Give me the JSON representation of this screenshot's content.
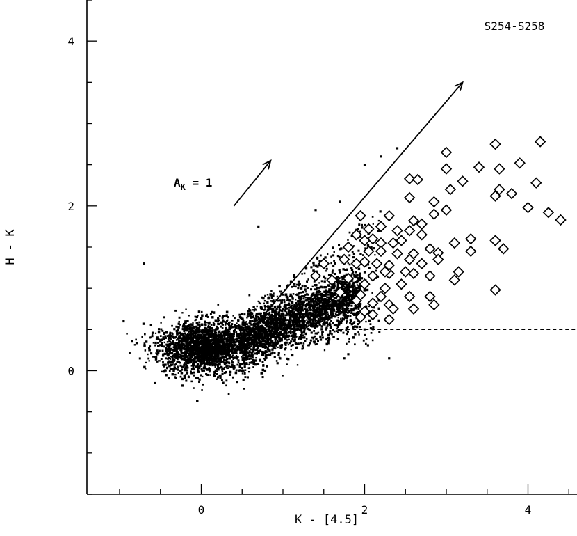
{
  "chart_data": {
    "type": "scatter",
    "title": "",
    "panel_label": "S254-S258",
    "xlabel": "K - [4.5]",
    "ylabel": "H - K",
    "xlim": [
      -1.4,
      4.6
    ],
    "ylim": [
      -1.5,
      4.5
    ],
    "x_ticks": [
      {
        "value": 0,
        "label": "0"
      },
      {
        "value": 2,
        "label": "2"
      },
      {
        "value": 4,
        "label": "4"
      }
    ],
    "y_ticks": [
      {
        "value": 0,
        "label": "0"
      },
      {
        "value": 2,
        "label": "2"
      },
      {
        "value": 4,
        "label": "4"
      }
    ],
    "grid": false,
    "reddening_vector": {
      "label_main": "A",
      "label_sub": "K",
      "label_rest": " = 1",
      "x": [
        0.4,
        0.85
      ],
      "y": [
        2.0,
        2.55
      ]
    },
    "boundary_line": {
      "x": [
        0.4,
        3.2
      ],
      "y": [
        0.25,
        3.5
      ]
    },
    "threshold_line": {
      "y": 0.5,
      "x": [
        1.7,
        4.6
      ],
      "style": "dashed"
    },
    "field_stars": {
      "count": 5000,
      "marker": "dot",
      "outliers": [
        [
          -0.7,
          1.3
        ],
        [
          -0.95,
          0.6
        ],
        [
          0.7,
          1.75
        ],
        [
          1.4,
          1.95
        ],
        [
          1.7,
          2.05
        ],
        [
          2.0,
          2.5
        ],
        [
          2.2,
          2.6
        ],
        [
          2.4,
          2.7
        ],
        [
          1.75,
          0.15
        ],
        [
          1.8,
          0.2
        ],
        [
          2.3,
          0.15
        ]
      ]
    },
    "yso_candidates": {
      "marker": "diamond",
      "points": [
        [
          3.0,
          2.65
        ],
        [
          3.6,
          2.75
        ],
        [
          4.15,
          2.78
        ],
        [
          3.4,
          2.47
        ],
        [
          3.65,
          2.45
        ],
        [
          3.9,
          2.52
        ],
        [
          2.55,
          2.33
        ],
        [
          2.65,
          2.32
        ],
        [
          3.0,
          2.45
        ],
        [
          3.2,
          2.3
        ],
        [
          3.65,
          2.2
        ],
        [
          4.1,
          2.28
        ],
        [
          2.55,
          2.1
        ],
        [
          2.85,
          2.05
        ],
        [
          3.05,
          2.2
        ],
        [
          3.6,
          2.12
        ],
        [
          3.8,
          2.15
        ],
        [
          4.0,
          1.98
        ],
        [
          4.25,
          1.92
        ],
        [
          4.4,
          1.83
        ],
        [
          1.95,
          1.88
        ],
        [
          2.3,
          1.88
        ],
        [
          2.6,
          1.82
        ],
        [
          2.7,
          1.78
        ],
        [
          2.85,
          1.9
        ],
        [
          3.0,
          1.95
        ],
        [
          2.05,
          1.72
        ],
        [
          2.2,
          1.75
        ],
        [
          2.4,
          1.7
        ],
        [
          2.55,
          1.7
        ],
        [
          2.7,
          1.65
        ],
        [
          3.1,
          1.55
        ],
        [
          3.3,
          1.6
        ],
        [
          3.6,
          1.58
        ],
        [
          3.7,
          1.48
        ],
        [
          2.0,
          1.58
        ],
        [
          2.1,
          1.6
        ],
        [
          2.2,
          1.55
        ],
        [
          2.35,
          1.55
        ],
        [
          2.45,
          1.58
        ],
        [
          2.6,
          1.42
        ],
        [
          2.8,
          1.48
        ],
        [
          2.9,
          1.43
        ],
        [
          3.3,
          1.45
        ],
        [
          1.8,
          1.5
        ],
        [
          2.05,
          1.45
        ],
        [
          2.2,
          1.45
        ],
        [
          2.4,
          1.42
        ],
        [
          2.55,
          1.35
        ],
        [
          2.7,
          1.3
        ],
        [
          2.9,
          1.35
        ],
        [
          1.9,
          1.3
        ],
        [
          2.0,
          1.32
        ],
        [
          2.15,
          1.3
        ],
        [
          2.3,
          1.28
        ],
        [
          2.1,
          1.15
        ],
        [
          2.3,
          1.18
        ],
        [
          2.5,
          1.2
        ],
        [
          2.6,
          1.18
        ],
        [
          2.8,
          1.15
        ],
        [
          3.15,
          1.2
        ],
        [
          3.1,
          1.1
        ],
        [
          1.6,
          1.1
        ],
        [
          1.8,
          1.12
        ],
        [
          2.0,
          1.05
        ],
        [
          2.25,
          1.0
        ],
        [
          2.45,
          1.05
        ],
        [
          3.6,
          0.98
        ],
        [
          1.7,
          0.95
        ],
        [
          1.95,
          0.92
        ],
        [
          2.2,
          0.9
        ],
        [
          2.55,
          0.9
        ],
        [
          2.8,
          0.9
        ],
        [
          1.9,
          0.85
        ],
        [
          2.1,
          0.82
        ],
        [
          2.3,
          0.8
        ],
        [
          2.6,
          0.75
        ],
        [
          2.85,
          0.8
        ],
        [
          2.0,
          0.72
        ],
        [
          2.35,
          0.75
        ],
        [
          1.95,
          0.65
        ],
        [
          2.1,
          0.68
        ],
        [
          2.3,
          0.62
        ],
        [
          1.4,
          1.15
        ],
        [
          1.5,
          1.3
        ],
        [
          1.9,
          1.65
        ],
        [
          1.75,
          1.35
        ],
        [
          2.25,
          1.2
        ]
      ]
    }
  }
}
